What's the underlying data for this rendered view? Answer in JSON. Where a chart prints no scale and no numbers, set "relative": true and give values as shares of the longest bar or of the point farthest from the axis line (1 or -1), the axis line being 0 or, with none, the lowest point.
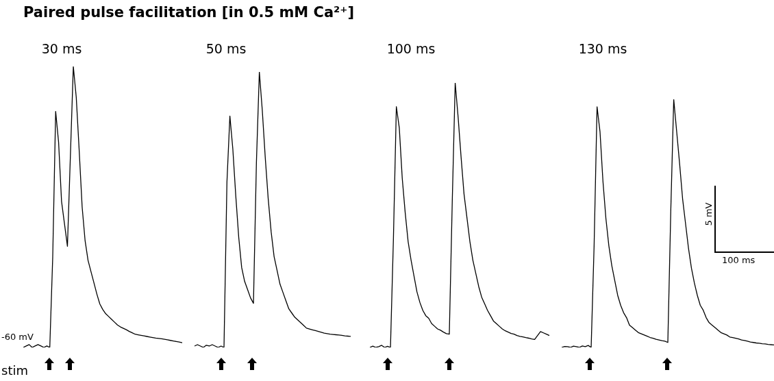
{
  "chart_data": [
    {
      "type": "line",
      "relative": true,
      "title": "Paired pulse facilitation [in 0.5 mM Ca²⁺]",
      "subtitle": "30 ms",
      "annotations": [
        "-60 mV",
        "stim"
      ],
      "categories": [
        null,
        null,
        null,
        null,
        null,
        null,
        null,
        null,
        null,
        null,
        null,
        null,
        null,
        null,
        null,
        null,
        null,
        null,
        null,
        null,
        null,
        null,
        null,
        null,
        null,
        null,
        null,
        null,
        null,
        null,
        null,
        null,
        null,
        null,
        null,
        null,
        null,
        null,
        null,
        null,
        null,
        null,
        null,
        null,
        null,
        null,
        null,
        null,
        null,
        null,
        null,
        null,
        null,
        null,
        null
      ],
      "series": [
        {
          "color": "#000000",
          "values": [
            0,
            0.005,
            0.01,
            0,
            0.005,
            0.01,
            0.005,
            0,
            0.005,
            0,
            0.32,
            0.84,
            0.73,
            0.52,
            0.44,
            0.36,
            0.68,
            1.0,
            0.89,
            0.7,
            0.5,
            0.38,
            0.31,
            0.27,
            0.23,
            0.19,
            0.155,
            0.135,
            0.12,
            0.11,
            0.1,
            0.09,
            0.08,
            0.073,
            0.068,
            0.063,
            0.057,
            0.052,
            0.047,
            0.045,
            0.043,
            0.041,
            0.039,
            0.037,
            0.035,
            0.033,
            0.032,
            0.031,
            0.029,
            0.027,
            0.025,
            0.023,
            0.021,
            0.019,
            0.017
          ]
        }
      ]
    },
    {
      "type": "line",
      "relative": true,
      "subtitle": "50 ms",
      "categories": [
        null,
        null,
        null,
        null,
        null,
        null,
        null,
        null,
        null,
        null,
        null,
        null,
        null,
        null,
        null,
        null,
        null,
        null,
        null,
        null,
        null,
        null,
        null,
        null,
        null,
        null,
        null,
        null,
        null,
        null,
        null,
        null,
        null,
        null,
        null,
        null,
        null,
        null,
        null,
        null,
        null,
        null,
        null,
        null,
        null,
        null,
        null,
        null,
        null,
        null,
        null,
        null,
        null,
        null
      ],
      "series": [
        {
          "color": "#000000",
          "values": [
            0.005,
            0.01,
            0.005,
            0,
            0.008,
            0.005,
            0.01,
            0.005,
            0,
            0.005,
            0,
            0.6,
            0.84,
            0.72,
            0.55,
            0.4,
            0.29,
            0.24,
            0.21,
            0.18,
            0.16,
            0.67,
            1.0,
            0.86,
            0.69,
            0.54,
            0.42,
            0.33,
            0.28,
            0.23,
            0.2,
            0.17,
            0.14,
            0.125,
            0.11,
            0.1,
            0.09,
            0.08,
            0.07,
            0.067,
            0.064,
            0.061,
            0.058,
            0.055,
            0.052,
            0.05,
            0.048,
            0.047,
            0.046,
            0.045,
            0.044,
            0.042,
            0.041,
            0.04
          ]
        }
      ]
    },
    {
      "type": "line",
      "relative": true,
      "subtitle": "100 ms",
      "categories": [
        null,
        null,
        null,
        null,
        null,
        null,
        null,
        null,
        null,
        null,
        null,
        null,
        null,
        null,
        null,
        null,
        null,
        null,
        null,
        null,
        null,
        null,
        null,
        null,
        null,
        null,
        null,
        null,
        null,
        null,
        null,
        null,
        null,
        null,
        null,
        null,
        null,
        null,
        null,
        null,
        null,
        null,
        null,
        null,
        null,
        null,
        null,
        null,
        null,
        null,
        null,
        null,
        null,
        null,
        null,
        null,
        null,
        null,
        null,
        null,
        null,
        null
      ],
      "series": [
        {
          "color": "#000000",
          "values": [
            0,
            0.005,
            0,
            0.003,
            0.008,
            0,
            0.004,
            0,
            0.41,
            0.91,
            0.83,
            0.64,
            0.51,
            0.4,
            0.33,
            0.27,
            0.21,
            0.17,
            0.14,
            0.12,
            0.11,
            0.09,
            0.08,
            0.07,
            0.065,
            0.058,
            0.052,
            0.05,
            0.55,
            1.0,
            0.87,
            0.72,
            0.58,
            0.49,
            0.4,
            0.33,
            0.28,
            0.23,
            0.19,
            0.165,
            0.14,
            0.12,
            0.1,
            0.09,
            0.08,
            0.07,
            0.063,
            0.058,
            0.053,
            0.05,
            0.045,
            0.042,
            0.04,
            0.037,
            0.035,
            0.032,
            0.03,
            0.045,
            0.06,
            0.055,
            0.05,
            0.045
          ]
        }
      ]
    },
    {
      "type": "line",
      "relative": true,
      "subtitle": "130 ms",
      "annotations": [
        "5 mV",
        "100 ms"
      ],
      "categories": [
        null,
        null,
        null,
        null,
        null,
        null,
        null,
        null,
        null,
        null,
        null,
        null,
        null,
        null,
        null,
        null,
        null,
        null,
        null,
        null,
        null,
        null,
        null,
        null,
        null,
        null,
        null,
        null,
        null,
        null,
        null,
        null,
        null,
        null,
        null,
        null,
        null,
        null,
        null,
        null,
        null,
        null,
        null,
        null,
        null,
        null,
        null,
        null,
        null,
        null,
        null,
        null,
        null,
        null,
        null,
        null,
        null,
        null,
        null,
        null,
        null,
        null,
        null,
        null,
        null,
        null,
        null,
        null,
        null,
        null,
        null,
        null,
        null
      ],
      "series": [
        {
          "color": "#000000",
          "values": [
            0,
            0.004,
            0.003,
            0,
            0.005,
            0.003,
            0,
            0.006,
            0.003,
            0.008,
            0,
            0.41,
            0.97,
            0.87,
            0.67,
            0.52,
            0.41,
            0.33,
            0.27,
            0.21,
            0.17,
            0.14,
            0.12,
            0.09,
            0.08,
            0.07,
            0.06,
            0.055,
            0.05,
            0.045,
            0.04,
            0.037,
            0.033,
            0.03,
            0.027,
            0.025,
            0.02,
            0.55,
            1.0,
            0.87,
            0.74,
            0.6,
            0.5,
            0.4,
            0.32,
            0.26,
            0.21,
            0.17,
            0.15,
            0.12,
            0.1,
            0.09,
            0.08,
            0.07,
            0.06,
            0.055,
            0.05,
            0.042,
            0.04,
            0.037,
            0.034,
            0.03,
            0.028,
            0.025,
            0.022,
            0.02,
            0.018,
            0.017,
            0.015,
            0.014,
            0.012,
            0.011,
            0.01
          ]
        }
      ]
    }
  ]
}
